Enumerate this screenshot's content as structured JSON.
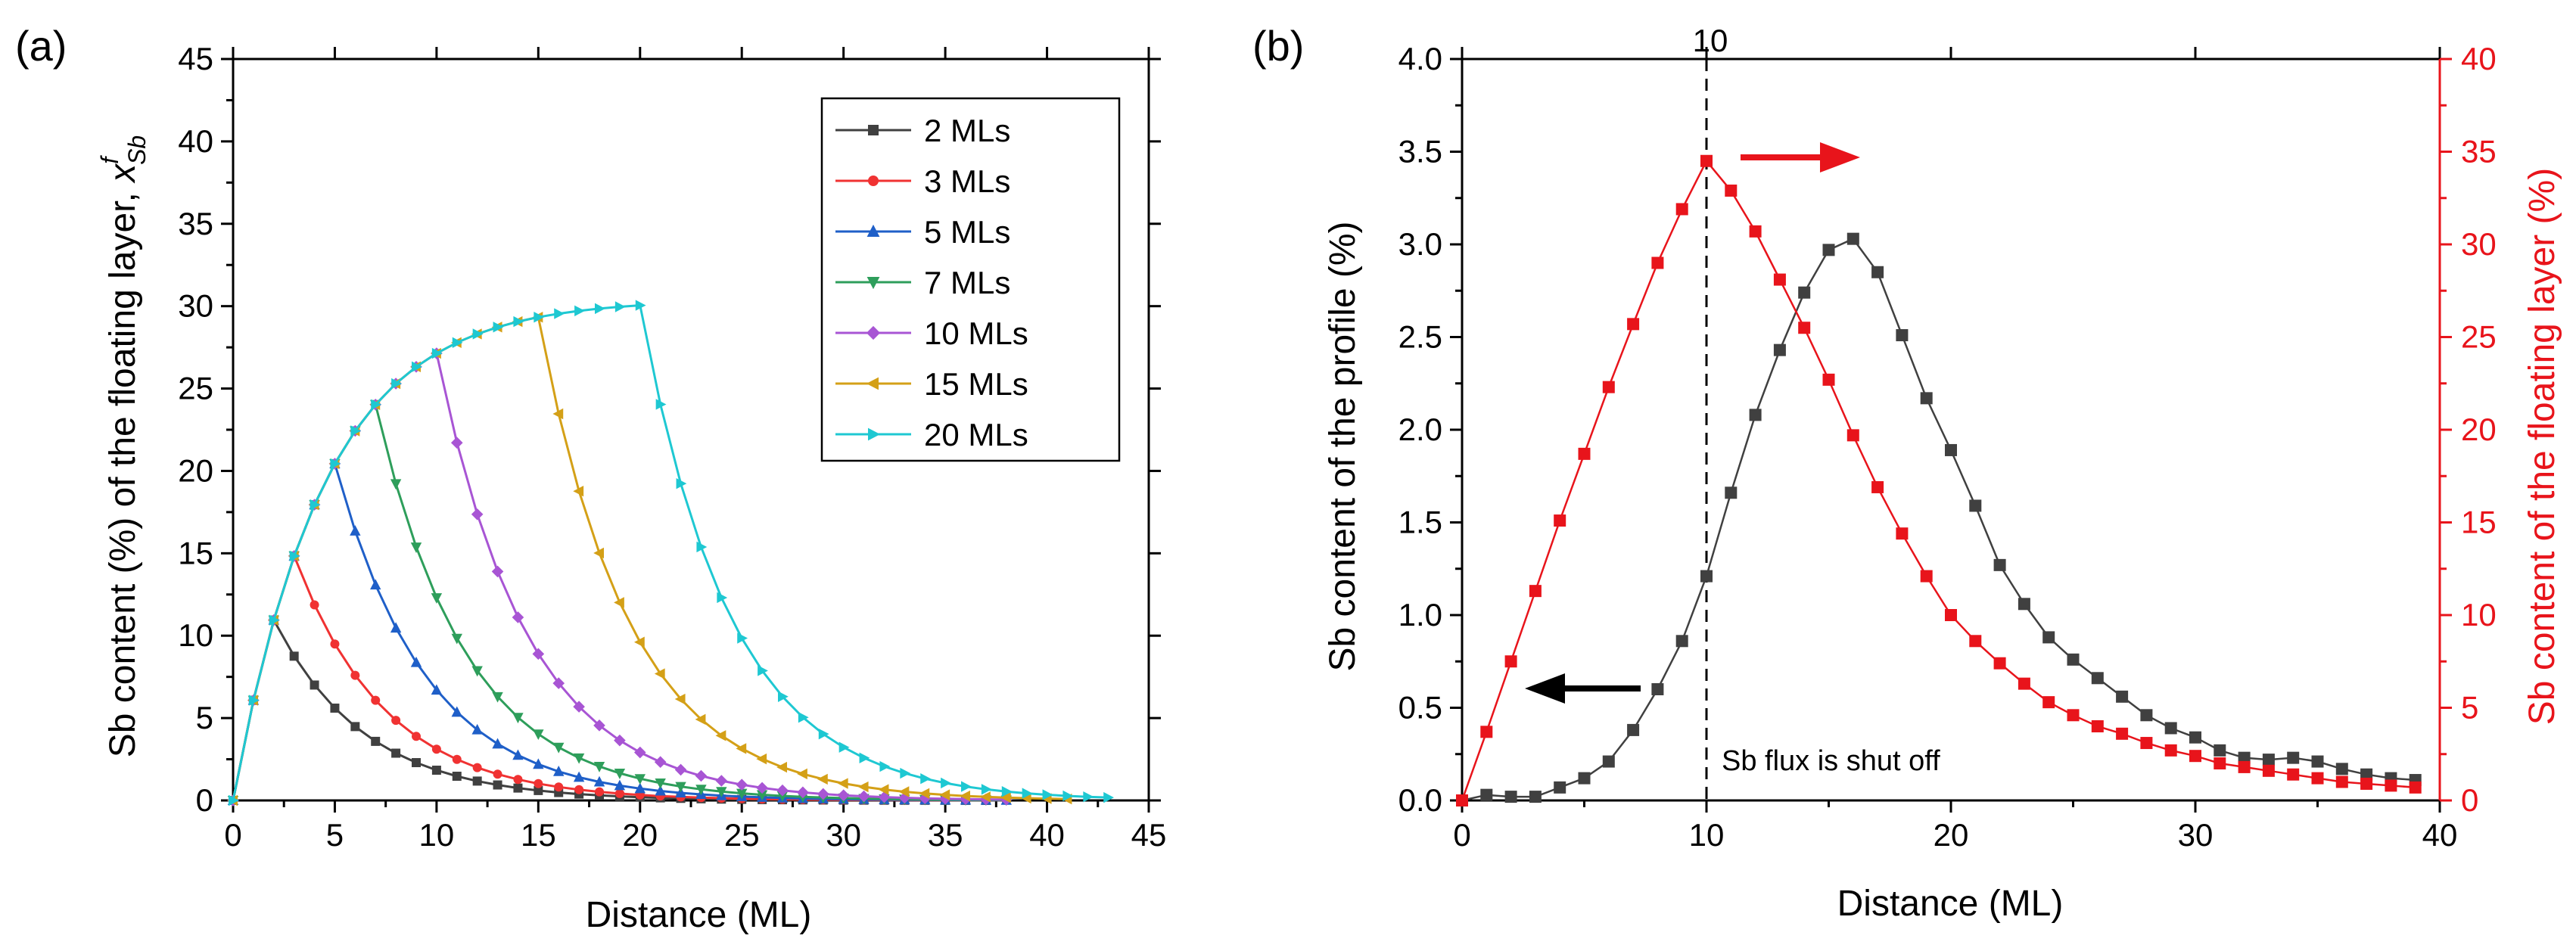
{
  "chart_data": [
    {
      "panel": "(a)",
      "type": "line",
      "xlabel": "Distance (ML)",
      "ylabel": "Sb content (%) of the floating layer, ",
      "ylabel_symbol": "x",
      "ylabel_sup": "f",
      "ylabel_sub": "Sb",
      "xlim": [
        0,
        45
      ],
      "ylim": [
        0,
        45
      ],
      "xticks": [
        "0",
        "5",
        "10",
        "15",
        "20",
        "25",
        "30",
        "35",
        "40",
        "45"
      ],
      "yticks": [
        "0",
        "5",
        "10",
        "15",
        "20",
        "25",
        "30",
        "35",
        "40",
        "45"
      ],
      "legend_position": "top-right",
      "series": [
        {
          "name": "2 MLs",
          "color": "#404040",
          "marker": "square",
          "n": 2,
          "end": 37
        },
        {
          "name": "3 MLs",
          "color": "#f03232",
          "marker": "circle",
          "n": 3,
          "end": 38
        },
        {
          "name": "5 MLs",
          "color": "#1f5fc8",
          "marker": "triangle-up",
          "n": 5,
          "end": 38
        },
        {
          "name": "7 MLs",
          "color": "#2e9e5b",
          "marker": "triangle-down",
          "n": 7,
          "end": 38
        },
        {
          "name": "10 MLs",
          "color": "#a855d4",
          "marker": "diamond",
          "n": 10,
          "end": 38
        },
        {
          "name": "15 MLs",
          "color": "#d4a017",
          "marker": "triangle-left",
          "n": 15,
          "end": 41
        },
        {
          "name": "20 MLs",
          "color": "#1ec8d2",
          "marker": "triangle-right",
          "n": 20,
          "end": 43
        }
      ]
    },
    {
      "panel": "(b)",
      "type": "scatter",
      "xlabel": "Distance (ML)",
      "ylabel_left": "Sb content of the profile (%)",
      "ylabel_right": "Sb content of the floating layer (%)",
      "xlim": [
        0,
        40
      ],
      "ylim_left": [
        0,
        4
      ],
      "ylim_right": [
        0,
        40
      ],
      "xticks": [
        "0",
        "10",
        "20",
        "30",
        "40"
      ],
      "yticks_left": [
        "0.0",
        "0.5",
        "1.0",
        "1.5",
        "2.0",
        "2.5",
        "3.0",
        "3.5",
        "4.0"
      ],
      "yticks_right": [
        "0",
        "5",
        "10",
        "15",
        "20",
        "25",
        "30",
        "35",
        "40"
      ],
      "vline_x": 10,
      "vline_label": "10",
      "annotation": "Sb flux is shut off",
      "series": [
        {
          "name": "Sb content of the profile",
          "axis": "left",
          "color": "#404040",
          "x": [
            0,
            1,
            2,
            3,
            4,
            5,
            6,
            7,
            8,
            9,
            10,
            11,
            12,
            13,
            14,
            15,
            16,
            17,
            18,
            19,
            20,
            21,
            22,
            23,
            24,
            25,
            26,
            27,
            28,
            29,
            30,
            31,
            32,
            33,
            34,
            35,
            36,
            37,
            38,
            39
          ],
          "y": [
            0.0,
            0.03,
            0.02,
            0.02,
            0.07,
            0.12,
            0.21,
            0.38,
            0.6,
            0.86,
            1.21,
            1.66,
            2.08,
            2.43,
            2.74,
            2.97,
            3.03,
            2.85,
            2.51,
            2.17,
            1.89,
            1.59,
            1.27,
            1.06,
            0.88,
            0.76,
            0.66,
            0.56,
            0.46,
            0.39,
            0.34,
            0.27,
            0.23,
            0.22,
            0.23,
            0.21,
            0.17,
            0.14,
            0.12,
            0.11
          ]
        },
        {
          "name": "Sb content of the floating layer",
          "axis": "right",
          "color": "#e8141b",
          "x": [
            0,
            1,
            2,
            3,
            4,
            5,
            6,
            7,
            8,
            9,
            10,
            11,
            12,
            13,
            14,
            15,
            16,
            17,
            18,
            19,
            20,
            21,
            22,
            23,
            24,
            25,
            26,
            27,
            28,
            29,
            30,
            31,
            32,
            33,
            34,
            35,
            36,
            37,
            38,
            39
          ],
          "y": [
            0.0,
            3.7,
            7.5,
            11.3,
            15.1,
            18.7,
            22.3,
            25.7,
            29.0,
            31.9,
            34.5,
            32.9,
            30.7,
            28.1,
            25.5,
            22.7,
            19.7,
            16.9,
            14.4,
            12.1,
            10.0,
            8.6,
            7.4,
            6.3,
            5.3,
            4.6,
            4.0,
            3.6,
            3.1,
            2.7,
            2.4,
            2.0,
            1.8,
            1.6,
            1.4,
            1.2,
            1.0,
            0.9,
            0.8,
            0.7
          ]
        }
      ]
    }
  ]
}
